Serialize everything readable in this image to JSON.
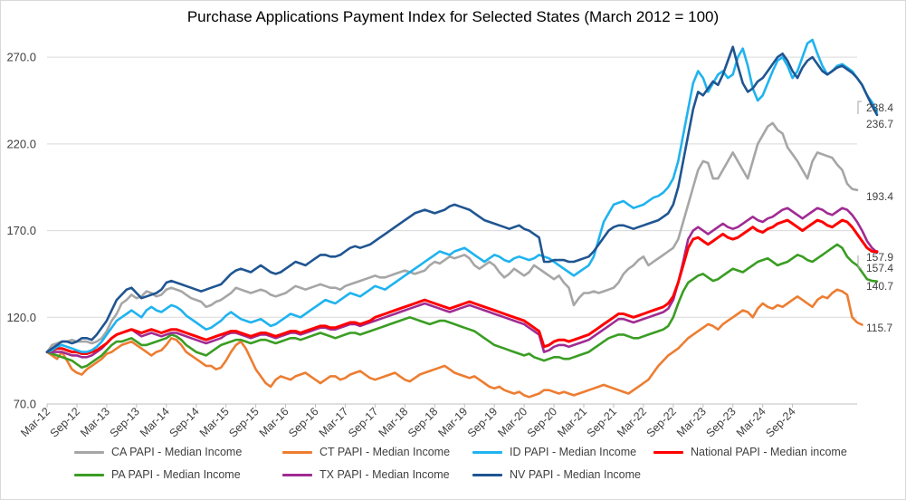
{
  "chart_data": {
    "type": "line",
    "title": "Purchase Applications Payment Index for Selected States (March 2012 = 100)",
    "xlabel": "",
    "ylabel": "",
    "ylim": [
      70,
      280
    ],
    "yticks": [
      "70.0",
      "120.0",
      "170.0",
      "220.0",
      "270.0"
    ],
    "ytick_values": [
      70,
      120,
      170,
      220,
      270
    ],
    "x_tick_labels": [
      "Mar-12",
      "Sep-12",
      "Mar-13",
      "Sep-13",
      "Mar-14",
      "Sep-14",
      "Mar-15",
      "Sep-15",
      "Mar-16",
      "Sep-16",
      "Mar-17",
      "Sep-17",
      "Mar-18",
      "Sep-18",
      "Mar-19",
      "Sep-19",
      "Mar-20",
      "Sep-20",
      "Mar-21",
      "Sep-21",
      "Mar-22",
      "Sep-22",
      "Mar-23",
      "Sep-23",
      "Mar-24",
      "Sep-24"
    ],
    "x_start": "Mar-12",
    "x_end": "Sep-24",
    "grid": "horizontal",
    "legend_position": "bottom",
    "series": [
      {
        "name": "CA PAPI - Median Income",
        "color": "#a6a6a6",
        "end_label": "193.4",
        "values": [
          100,
          104,
          105,
          106,
          106,
          107,
          106,
          106,
          106,
          105,
          106,
          108,
          112,
          118,
          122,
          128,
          130,
          133,
          131,
          132,
          135,
          134,
          132,
          133,
          136,
          137,
          136,
          135,
          133,
          131,
          130,
          129,
          126,
          127,
          129,
          130,
          132,
          134,
          137,
          136,
          135,
          134,
          135,
          136,
          135,
          133,
          132,
          133,
          134,
          136,
          138,
          137,
          136,
          137,
          138,
          139,
          138,
          137,
          137,
          136,
          138,
          139,
          140,
          141,
          142,
          143,
          144,
          143,
          143,
          144,
          145,
          146,
          147,
          146,
          145,
          146,
          147,
          150,
          152,
          151,
          153,
          155,
          154,
          155,
          156,
          154,
          150,
          148,
          150,
          152,
          150,
          146,
          143,
          145,
          148,
          146,
          144,
          146,
          150,
          148,
          146,
          144,
          142,
          144,
          140,
          137,
          127,
          131,
          134,
          134,
          135,
          134,
          135,
          136,
          137,
          140,
          145,
          148,
          150,
          153,
          155,
          150,
          152,
          154,
          156,
          158,
          160,
          165,
          175,
          185,
          195,
          205,
          210,
          209,
          200,
          200,
          205,
          210,
          215,
          210,
          205,
          200,
          210,
          220,
          225,
          230,
          232,
          228,
          226,
          218,
          214,
          210,
          205,
          200,
          210,
          215,
          214,
          213,
          212,
          208,
          205,
          197,
          194,
          193.4
        ]
      },
      {
        "name": "CT PAPI - Median Income",
        "color": "#ed7d31",
        "end_label": "115.7",
        "values": [
          100,
          98,
          96,
          100,
          95,
          90,
          88,
          87,
          90,
          92,
          94,
          96,
          99,
          100,
          102,
          104,
          105,
          106,
          104,
          102,
          100,
          98,
          100,
          101,
          104,
          108,
          107,
          104,
          100,
          98,
          96,
          94,
          92,
          92,
          90,
          91,
          95,
          100,
          104,
          106,
          102,
          96,
          90,
          86,
          82,
          80,
          84,
          86,
          85,
          84,
          86,
          87,
          88,
          86,
          84,
          82,
          84,
          86,
          86,
          84,
          85,
          87,
          88,
          89,
          87,
          85,
          84,
          85,
          86,
          87,
          88,
          86,
          84,
          83,
          85,
          87,
          88,
          89,
          90,
          91,
          92,
          90,
          88,
          87,
          86,
          85,
          86,
          84,
          82,
          80,
          79,
          80,
          78,
          77,
          76,
          77,
          75,
          74,
          75,
          76,
          78,
          78,
          77,
          76,
          77,
          76,
          75,
          76,
          77,
          78,
          79,
          80,
          81,
          80,
          79,
          78,
          77,
          76,
          78,
          80,
          82,
          84,
          88,
          92,
          95,
          98,
          100,
          102,
          105,
          108,
          110,
          112,
          114,
          116,
          115,
          113,
          116,
          118,
          120,
          122,
          124,
          123,
          120,
          125,
          128,
          126,
          125,
          127,
          126,
          128,
          130,
          132,
          130,
          128,
          126,
          130,
          132,
          131,
          134,
          136,
          135,
          133,
          120,
          117,
          115.7
        ]
      },
      {
        "name": "ID PAPI - Median Income",
        "color": "#1fb3ef",
        "end_label": "238.4",
        "values": [
          100,
          101,
          103,
          104,
          103,
          102,
          101,
          100,
          100,
          101,
          103,
          106,
          110,
          114,
          118,
          120,
          122,
          124,
          122,
          120,
          124,
          126,
          124,
          123,
          125,
          127,
          126,
          124,
          121,
          119,
          117,
          115,
          113,
          114,
          116,
          118,
          121,
          123,
          121,
          119,
          118,
          117,
          118,
          119,
          117,
          115,
          116,
          118,
          120,
          122,
          121,
          120,
          122,
          124,
          126,
          128,
          130,
          129,
          128,
          130,
          132,
          134,
          133,
          132,
          134,
          136,
          138,
          137,
          136,
          138,
          140,
          142,
          144,
          146,
          148,
          150,
          152,
          154,
          156,
          158,
          157,
          156,
          158,
          159,
          160,
          158,
          156,
          154,
          152,
          154,
          156,
          155,
          153,
          152,
          154,
          155,
          154,
          153,
          154,
          156,
          155,
          154,
          152,
          150,
          148,
          146,
          144,
          146,
          148,
          150,
          155,
          165,
          175,
          180,
          185,
          186,
          187,
          185,
          183,
          184,
          185,
          187,
          189,
          190,
          192,
          195,
          200,
          210,
          225,
          240,
          255,
          262,
          258,
          250,
          255,
          260,
          262,
          258,
          260,
          270,
          275,
          265,
          252,
          245,
          248,
          255,
          262,
          268,
          270,
          265,
          258,
          262,
          270,
          278,
          280,
          272,
          265,
          260,
          262,
          265,
          266,
          264,
          262,
          258,
          254,
          248,
          244,
          238.4
        ]
      },
      {
        "name": "National PAPI - Median income",
        "color": "#ff0000",
        "end_label": "157.9",
        "values": [
          100,
          101,
          102,
          102,
          101,
          100,
          100,
          99,
          99,
          100,
          101,
          103,
          105,
          108,
          110,
          111,
          112,
          113,
          112,
          111,
          112,
          113,
          112,
          111,
          112,
          113,
          113,
          112,
          111,
          110,
          109,
          108,
          107,
          108,
          109,
          110,
          111,
          112,
          112,
          111,
          110,
          109,
          110,
          111,
          111,
          110,
          109,
          110,
          111,
          112,
          112,
          111,
          112,
          113,
          114,
          115,
          115,
          114,
          114,
          115,
          116,
          117,
          117,
          116,
          117,
          118,
          120,
          121,
          122,
          123,
          124,
          125,
          126,
          127,
          128,
          129,
          130,
          129,
          128,
          127,
          126,
          125,
          126,
          127,
          128,
          129,
          128,
          127,
          126,
          125,
          124,
          123,
          122,
          121,
          120,
          119,
          118,
          116,
          114,
          112,
          103,
          104,
          106,
          107,
          107,
          106,
          107,
          108,
          109,
          110,
          112,
          114,
          116,
          118,
          120,
          122,
          122,
          121,
          120,
          121,
          122,
          123,
          124,
          125,
          126,
          128,
          132,
          140,
          150,
          160,
          165,
          166,
          164,
          162,
          164,
          166,
          168,
          166,
          165,
          166,
          168,
          170,
          172,
          170,
          169,
          171,
          172,
          174,
          175,
          176,
          174,
          172,
          170,
          172,
          174,
          176,
          175,
          173,
          172,
          174,
          176,
          175,
          172,
          168,
          164,
          160,
          158,
          157.9
        ]
      },
      {
        "name": "PA PAPI - Median Income",
        "color": "#3a9d23",
        "end_label": "140.7",
        "values": [
          100,
          99,
          98,
          97,
          96,
          95,
          93,
          91,
          92,
          94,
          96,
          98,
          101,
          104,
          106,
          106,
          107,
          108,
          106,
          104,
          104,
          105,
          106,
          107,
          108,
          110,
          109,
          107,
          104,
          102,
          100,
          99,
          98,
          100,
          102,
          104,
          105,
          106,
          107,
          107,
          106,
          105,
          106,
          107,
          107,
          106,
          105,
          106,
          107,
          108,
          108,
          107,
          108,
          109,
          110,
          111,
          110,
          109,
          108,
          109,
          110,
          111,
          111,
          110,
          111,
          112,
          113,
          114,
          115,
          116,
          117,
          118,
          119,
          120,
          119,
          118,
          117,
          116,
          117,
          118,
          118,
          117,
          116,
          115,
          114,
          113,
          112,
          110,
          108,
          106,
          104,
          103,
          102,
          101,
          100,
          99,
          98,
          99,
          97,
          96,
          95,
          96,
          97,
          97,
          96,
          96,
          97,
          98,
          99,
          100,
          102,
          104,
          106,
          108,
          109,
          110,
          110,
          109,
          108,
          108,
          109,
          110,
          111,
          112,
          113,
          115,
          120,
          128,
          135,
          140,
          142,
          144,
          145,
          143,
          141,
          142,
          144,
          146,
          148,
          147,
          146,
          148,
          150,
          152,
          153,
          154,
          152,
          150,
          151,
          152,
          154,
          156,
          155,
          153,
          152,
          154,
          156,
          158,
          160,
          162,
          160,
          155,
          152,
          150,
          146,
          142,
          141,
          140.7
        ]
      },
      {
        "name": "TX PAPI - Median Income",
        "color": "#a02b93",
        "end_label": "157.4",
        "values": [
          100,
          100,
          100,
          100,
          99,
          98,
          98,
          97,
          97,
          98,
          100,
          102,
          105,
          108,
          110,
          111,
          112,
          113,
          111,
          109,
          110,
          111,
          110,
          109,
          110,
          111,
          111,
          110,
          109,
          108,
          107,
          106,
          105,
          106,
          107,
          108,
          110,
          111,
          111,
          110,
          109,
          108,
          109,
          110,
          110,
          109,
          108,
          109,
          110,
          111,
          111,
          110,
          111,
          112,
          113,
          114,
          114,
          113,
          113,
          114,
          115,
          116,
          116,
          115,
          116,
          117,
          118,
          119,
          120,
          121,
          122,
          123,
          124,
          125,
          126,
          127,
          128,
          127,
          126,
          125,
          124,
          123,
          124,
          125,
          126,
          127,
          126,
          125,
          124,
          123,
          122,
          121,
          120,
          119,
          118,
          117,
          116,
          114,
          112,
          110,
          100,
          101,
          103,
          104,
          104,
          103,
          104,
          105,
          106,
          107,
          109,
          111,
          113,
          115,
          117,
          119,
          119,
          118,
          117,
          118,
          119,
          120,
          121,
          122,
          123,
          125,
          130,
          140,
          152,
          165,
          170,
          172,
          170,
          168,
          170,
          172,
          174,
          172,
          171,
          172,
          174,
          176,
          178,
          176,
          175,
          177,
          178,
          180,
          182,
          183,
          181,
          179,
          177,
          179,
          181,
          183,
          182,
          180,
          179,
          181,
          183,
          182,
          179,
          175,
          170,
          164,
          160,
          157.4
        ]
      },
      {
        "name": "NV PAPI - Median Income",
        "color": "#1f5591",
        "end_label": "236.7",
        "values": [
          100,
          102,
          104,
          106,
          106,
          105,
          106,
          108,
          108,
          107,
          110,
          114,
          118,
          124,
          130,
          133,
          136,
          137,
          134,
          131,
          132,
          133,
          134,
          136,
          140,
          141,
          140,
          139,
          138,
          137,
          136,
          135,
          136,
          137,
          138,
          139,
          142,
          145,
          147,
          148,
          147,
          146,
          148,
          150,
          148,
          146,
          145,
          146,
          148,
          150,
          152,
          151,
          150,
          152,
          154,
          156,
          156,
          155,
          155,
          156,
          158,
          160,
          161,
          160,
          161,
          162,
          164,
          166,
          168,
          170,
          172,
          174,
          176,
          178,
          180,
          181,
          182,
          181,
          180,
          181,
          182,
          184,
          185,
          184,
          183,
          182,
          180,
          178,
          176,
          175,
          174,
          173,
          172,
          171,
          172,
          173,
          171,
          170,
          168,
          166,
          152,
          152,
          153,
          153,
          153,
          152,
          152,
          153,
          154,
          155,
          158,
          162,
          166,
          170,
          172,
          173,
          173,
          172,
          171,
          172,
          173,
          174,
          175,
          176,
          178,
          180,
          185,
          195,
          210,
          225,
          240,
          250,
          248,
          252,
          256,
          254,
          260,
          268,
          276,
          265,
          255,
          250,
          252,
          256,
          258,
          262,
          266,
          270,
          272,
          268,
          262,
          258,
          264,
          268,
          270,
          266,
          262,
          260,
          262,
          264,
          265,
          263,
          261,
          258,
          254,
          248,
          242,
          236.7
        ]
      }
    ]
  }
}
